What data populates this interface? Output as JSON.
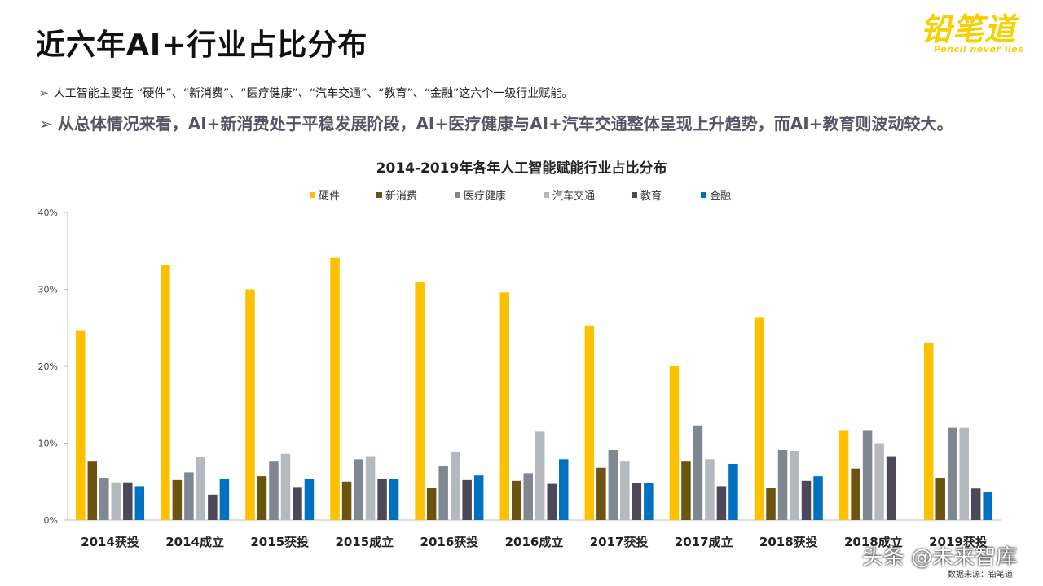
{
  "page": {
    "title": "近六年AI+行业占比分布",
    "bullets": [
      "人工智能主要在 “硬件”、“新消费”、“医疗健康”、“汽车交通”、“教育”、“金融”这六个一级行业赋能。",
      "从总体情况来看，AI+新消费处于平稳发展阶段，AI+医疗健康与AI+汽车交通整体呈现上升趋势，而AI+教育则波动较大。"
    ],
    "bullet_marker": "➢",
    "logo_text": "铅笔道",
    "logo_subtext": "Pencil never lies",
    "watermark": "头条 @未来智库",
    "source": "数据来源：铅笔道"
  },
  "chart_data": {
    "type": "bar",
    "title": "2014-2019年各年人工智能赋能行业占比分布",
    "xlabel": "",
    "ylabel": "",
    "ylim": [
      0,
      40
    ],
    "yticks": [
      "0%",
      "10%",
      "20%",
      "30%",
      "40%"
    ],
    "legend_position": "top",
    "grid": false,
    "categories": [
      "2014获投",
      "2014成立",
      "2015获投",
      "2015成立",
      "2016获投",
      "2016成立",
      "2017获投",
      "2017成立",
      "2018获投",
      "2018成立",
      "2019获投"
    ],
    "series": [
      {
        "name": "硬件",
        "color": "#FFC000",
        "values": [
          24.6,
          33.2,
          30.0,
          34.1,
          31.0,
          29.6,
          25.3,
          20.0,
          26.3,
          11.7,
          23.0
        ]
      },
      {
        "name": "新消费",
        "color": "#6B5310",
        "values": [
          7.6,
          5.2,
          5.7,
          5.0,
          4.2,
          5.1,
          6.8,
          7.6,
          4.2,
          6.7,
          5.5
        ]
      },
      {
        "name": "医疗健康",
        "color": "#7F8792",
        "values": [
          5.5,
          6.2,
          7.6,
          7.9,
          7.0,
          6.1,
          9.1,
          12.3,
          9.1,
          11.7,
          12.0
        ]
      },
      {
        "name": "汽车交通",
        "color": "#B4B8BF",
        "values": [
          4.9,
          8.2,
          8.6,
          8.3,
          8.9,
          11.5,
          7.6,
          7.9,
          9.0,
          10.0,
          12.0
        ]
      },
      {
        "name": "教育",
        "color": "#4D4859",
        "values": [
          4.9,
          3.3,
          4.3,
          5.4,
          5.2,
          4.7,
          4.8,
          4.4,
          5.1,
          8.3,
          4.1
        ]
      },
      {
        "name": "金融",
        "color": "#0070C0",
        "values": [
          4.4,
          5.4,
          5.3,
          5.3,
          5.8,
          7.9,
          4.8,
          7.3,
          5.7,
          0,
          3.7
        ]
      }
    ]
  }
}
